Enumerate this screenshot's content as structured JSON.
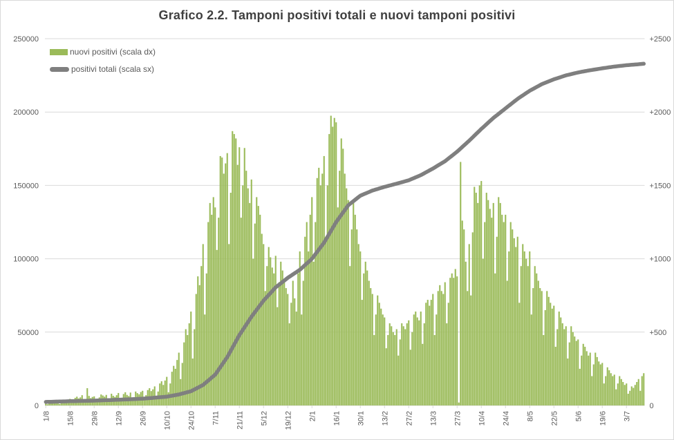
{
  "title": "Grafico 2.2. Tamponi positivi totali e nuovi tamponi positivi",
  "legend": [
    {
      "label": "nuovi positivi (scala dx)",
      "kind": "bar",
      "color": "#9bbb59"
    },
    {
      "label": "positivi totali (scala sx)",
      "kind": "line",
      "color": "#7f7f7f"
    }
  ],
  "colors": {
    "bar": "#9bbb59",
    "line": "#7f7f7f",
    "grid": "#d9d9d9",
    "axis_text": "#595959",
    "title_text": "#404040",
    "border": "#d9d9d9"
  },
  "left_axis": {
    "title": "",
    "min": 0,
    "max": 250000,
    "ticks": [
      "250000",
      "200000",
      "150000",
      "100000",
      "50000",
      "0"
    ]
  },
  "right_axis": {
    "title": "",
    "min": 0,
    "max": 2500,
    "ticks": [
      "+2500",
      "+2000",
      "+1500",
      "+1000",
      "+500",
      "0"
    ]
  },
  "x_axis": {
    "tick_labels": [
      "1/8",
      "15/8",
      "29/8",
      "12/9",
      "26/9",
      "10/10",
      "24/10",
      "7/11",
      "21/11",
      "5/12",
      "19/12",
      "2/1",
      "16/1",
      "30/1",
      "13/2",
      "27/2",
      "13/3",
      "27/3",
      "10/4",
      "24/4",
      "8/5",
      "22/5",
      "5/6",
      "19/6",
      "3/7"
    ],
    "tick_every_days": 14,
    "n_days": 347
  },
  "chart_data": {
    "type": "bar",
    "title": "Grafico 2.2. Tamponi positivi totali e nuovi tamponi positivi",
    "xlabel": "",
    "ylabel_left": "positivi totali",
    "ylabel_right": "nuovi positivi",
    "x_tick_labels": [
      "1/8",
      "15/8",
      "29/8",
      "12/9",
      "26/9",
      "10/10",
      "24/10",
      "7/11",
      "21/11",
      "5/12",
      "19/12",
      "2/1",
      "16/1",
      "30/1",
      "13/2",
      "27/2",
      "13/3",
      "27/3",
      "10/4",
      "24/4",
      "8/5",
      "22/5",
      "5/6",
      "19/6",
      "3/7"
    ],
    "tick_every_days": 14,
    "n_days": 347,
    "left_ylim": [
      0,
      250000
    ],
    "right_ylim": [
      0,
      2500
    ],
    "grid": "horizontal",
    "legend_position": "top-left-inside",
    "series": [
      {
        "name": "nuovi positivi (scala dx)",
        "kind": "bar",
        "axis": "right",
        "color": "#9bbb59",
        "values": [
          15,
          8,
          12,
          18,
          22,
          25,
          20,
          28,
          10,
          14,
          30,
          26,
          34,
          38,
          45,
          20,
          30,
          52,
          60,
          48,
          55,
          70,
          30,
          42,
          118,
          65,
          50,
          58,
          62,
          28,
          40,
          55,
          75,
          68,
          60,
          72,
          32,
          45,
          80,
          66,
          58,
          70,
          85,
          38,
          52,
          78,
          90,
          72,
          64,
          88,
          40,
          56,
          95,
          84,
          76,
          92,
          100,
          45,
          70,
          105,
          118,
          98,
          110,
          130,
          60,
          95,
          150,
          165,
          140,
          170,
          195,
          90,
          150,
          230,
          270,
          250,
          310,
          360,
          180,
          290,
          430,
          520,
          480,
          560,
          640,
          320,
          520,
          760,
          880,
          820,
          950,
          1100,
          620,
          900,
          1250,
          1380,
          1300,
          1420,
          1350,
          1060,
          1280,
          1700,
          1690,
          1580,
          1650,
          1720,
          1100,
          1450,
          1870,
          1850,
          1820,
          1640,
          1760,
          1280,
          1500,
          1755,
          1600,
          1480,
          1380,
          1540,
          1000,
          1240,
          1420,
          1360,
          1300,
          1170,
          1100,
          780,
          950,
          1080,
          1010,
          940,
          900,
          1020,
          670,
          840,
          980,
          920,
          860,
          800,
          760,
          560,
          700,
          850,
          730,
          640,
          900,
          1050,
          620,
          850,
          1150,
          1250,
          1050,
          1300,
          1420,
          980,
          1250,
          1550,
          1620,
          1500,
          1580,
          1700,
          1150,
          1500,
          1850,
          1975,
          1900,
          1960,
          1930,
          1350,
          1600,
          1820,
          1750,
          1580,
          1480,
          1400,
          950,
          1200,
          1380,
          1300,
          1200,
          1100,
          1050,
          720,
          900,
          980,
          920,
          850,
          800,
          760,
          480,
          620,
          750,
          700,
          660,
          620,
          600,
          390,
          480,
          560,
          540,
          500,
          480,
          520,
          340,
          450,
          560,
          540,
          520,
          560,
          580,
          380,
          500,
          620,
          640,
          600,
          580,
          640,
          420,
          560,
          700,
          720,
          680,
          720,
          760,
          480,
          620,
          780,
          820,
          780,
          760,
          840,
          560,
          700,
          870,
          900,
          870,
          930,
          880,
          20,
          1660,
          1260,
          1200,
          980,
          780,
          1100,
          750,
          1180,
          1490,
          1450,
          1380,
          1500,
          1530,
          1000,
          1250,
          1450,
          1400,
          1340,
          1280,
          1380,
          900,
          1150,
          1420,
          1380,
          1300,
          1250,
          1300,
          850,
          1050,
          1250,
          1200,
          1140,
          1080,
          1150,
          700,
          950,
          1100,
          1050,
          1000,
          950,
          1050,
          620,
          800,
          950,
          900,
          850,
          800,
          780,
          480,
          650,
          780,
          740,
          700,
          660,
          680,
          400,
          520,
          640,
          600,
          560,
          520,
          540,
          320,
          430,
          540,
          500,
          470,
          440,
          450,
          250,
          340,
          420,
          400,
          370,
          340,
          360,
          200,
          280,
          360,
          330,
          300,
          280,
          290,
          150,
          200,
          260,
          240,
          220,
          200,
          210,
          110,
          150,
          200,
          180,
          160,
          140,
          150,
          80,
          100,
          130,
          120,
          140,
          160,
          180,
          100,
          200,
          220
        ]
      },
      {
        "name": "positivi totali (scala sx)",
        "kind": "line",
        "axis": "left",
        "color": "#7f7f7f",
        "anchors": [
          [
            0,
            2400
          ],
          [
            14,
            2900
          ],
          [
            28,
            3300
          ],
          [
            42,
            3900
          ],
          [
            56,
            4600
          ],
          [
            70,
            6000
          ],
          [
            77,
            7500
          ],
          [
            84,
            9700
          ],
          [
            91,
            14000
          ],
          [
            98,
            21000
          ],
          [
            105,
            33000
          ],
          [
            112,
            48000
          ],
          [
            119,
            60500
          ],
          [
            126,
            71500
          ],
          [
            133,
            80500
          ],
          [
            140,
            87000
          ],
          [
            147,
            92500
          ],
          [
            154,
            100000
          ],
          [
            161,
            111000
          ],
          [
            168,
            125000
          ],
          [
            175,
            136500
          ],
          [
            182,
            143000
          ],
          [
            189,
            146500
          ],
          [
            196,
            149000
          ],
          [
            203,
            151200
          ],
          [
            210,
            153500
          ],
          [
            217,
            157000
          ],
          [
            224,
            161500
          ],
          [
            231,
            166500
          ],
          [
            238,
            173000
          ],
          [
            245,
            180500
          ],
          [
            252,
            188500
          ],
          [
            259,
            196000
          ],
          [
            266,
            202500
          ],
          [
            273,
            209000
          ],
          [
            280,
            214500
          ],
          [
            287,
            219000
          ],
          [
            294,
            222300
          ],
          [
            301,
            225000
          ],
          [
            308,
            227000
          ],
          [
            315,
            228500
          ],
          [
            322,
            229800
          ],
          [
            329,
            231000
          ],
          [
            336,
            231900
          ],
          [
            346,
            232900
          ]
        ]
      }
    ]
  }
}
